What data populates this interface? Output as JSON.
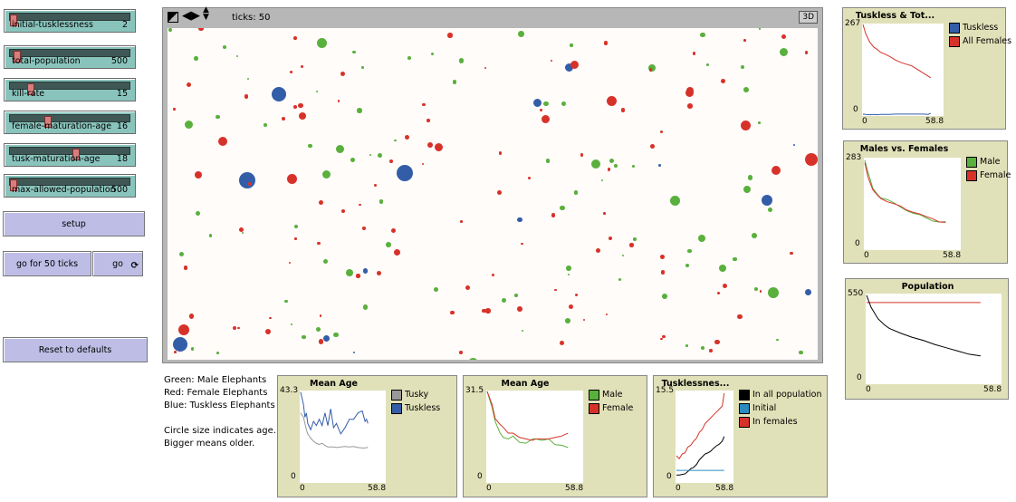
{
  "sliders": [
    {
      "label": "initial-tusklessness",
      "value": "2",
      "fraction": 0.0
    },
    {
      "label": "total-population",
      "value": "500",
      "fraction": 0.03
    },
    {
      "label": "kill-rate",
      "value": "15",
      "fraction": 0.15
    },
    {
      "label": "female-maturation-age",
      "value": "16",
      "fraction": 0.3
    },
    {
      "label": "tusk-maturation-age",
      "value": "18",
      "fraction": 0.54
    },
    {
      "label": "max-allowed-population",
      "value": "500",
      "fraction": 0.0
    }
  ],
  "buttons": {
    "setup": "setup",
    "go_for_50": "go for 50 ticks",
    "go": "go",
    "go_icon": "forever-icon",
    "reset": "Reset to defaults"
  },
  "view": {
    "ticks_label": "ticks: 50",
    "three_d": "3D",
    "colors": {
      "male": "#59b03c",
      "female": "#d73229",
      "tuskless": "#345da8"
    }
  },
  "notes": [
    "Green: Male Elephants",
    "Red: Female Elephants",
    "Blue: Tuskless Elephants",
    "",
    "Circle size indicates age.",
    "Bigger means older."
  ],
  "chart_data": [
    {
      "id": "tuskless-total",
      "type": "line",
      "title": "Tuskless & Tot...",
      "xlim": [
        0,
        58.8
      ],
      "ylim": [
        0,
        267
      ],
      "xticks": [
        "0",
        "58.8"
      ],
      "yticks": [
        "0",
        "267"
      ],
      "x": [
        0,
        2,
        5,
        8,
        10,
        13,
        16,
        20,
        24,
        28,
        32,
        36,
        40,
        44,
        48,
        50
      ],
      "series": [
        {
          "name": "Tuskless",
          "color": "#345da8",
          "values": [
            3,
            2,
            1,
            2,
            1,
            2,
            2,
            2,
            3,
            3,
            3,
            3,
            3,
            3,
            2,
            5
          ]
        },
        {
          "name": "All Females",
          "color": "#d73229",
          "values": [
            267,
            240,
            215,
            200,
            195,
            185,
            180,
            172,
            162,
            155,
            150,
            145,
            135,
            125,
            115,
            110
          ]
        }
      ]
    },
    {
      "id": "males-females",
      "type": "line",
      "title": "Males vs. Females",
      "xlim": [
        0,
        58.8
      ],
      "ylim": [
        0,
        283
      ],
      "xticks": [
        "0",
        "58.8"
      ],
      "yticks": [
        "0",
        "283"
      ],
      "x": [
        0,
        2,
        5,
        8,
        10,
        14,
        18,
        22,
        26,
        30,
        34,
        38,
        42,
        46,
        50
      ],
      "series": [
        {
          "name": "Male",
          "color": "#59b03c",
          "values": [
            278,
            240,
            190,
            170,
            160,
            155,
            145,
            132,
            120,
            112,
            108,
            98,
            88,
            85,
            86
          ]
        },
        {
          "name": "Female",
          "color": "#d73229",
          "values": [
            270,
            225,
            185,
            168,
            158,
            148,
            142,
            135,
            122,
            115,
            110,
            102,
            95,
            85,
            84
          ]
        }
      ]
    },
    {
      "id": "population",
      "type": "line",
      "title": "Population",
      "xlim": [
        0,
        58.8
      ],
      "ylim": [
        0,
        550
      ],
      "xticks": [
        "0",
        "58.8"
      ],
      "yticks": [
        "0",
        "550"
      ],
      "x": [
        0,
        2,
        5,
        8,
        10,
        15,
        20,
        25,
        30,
        35,
        40,
        45,
        50
      ],
      "series": [
        {
          "color": "#d73229",
          "values": [
            500,
            500,
            500,
            500,
            500,
            500,
            500,
            500,
            500,
            500,
            500,
            500,
            500
          ]
        },
        {
          "color": "#000000",
          "values": [
            545,
            470,
            400,
            360,
            340,
            310,
            285,
            265,
            240,
            220,
            200,
            180,
            170
          ]
        }
      ]
    },
    {
      "id": "mean-age-tusk",
      "type": "line",
      "title": "Mean Age",
      "xlim": [
        0,
        58.8
      ],
      "ylim": [
        0,
        43.3
      ],
      "xticks": [
        "0",
        "58.8"
      ],
      "yticks": [
        "0",
        "43.3"
      ],
      "x": [
        0,
        2,
        3,
        4,
        5,
        7,
        9,
        11,
        13,
        15,
        17,
        19,
        21,
        23,
        25,
        28,
        31,
        34,
        37,
        40,
        43,
        45,
        46,
        47
      ],
      "series": [
        {
          "name": "Tusky",
          "color": "#999999",
          "values": [
            33,
            31,
            28,
            25,
            23,
            21,
            19.5,
            18.5,
            18,
            18.5,
            17.5,
            16.8,
            16.8,
            16.8,
            16.5,
            16.8,
            17,
            16.8,
            17,
            16.5,
            16.3,
            16.3,
            16.5,
            16.5
          ]
        },
        {
          "name": "Tuskless",
          "color": "#345da8",
          "values": [
            43,
            37,
            31,
            33,
            28,
            25,
            29,
            27,
            30,
            27,
            33,
            27,
            35,
            26,
            28,
            23,
            26,
            30,
            30,
            33,
            34,
            29,
            30,
            28
          ]
        }
      ]
    },
    {
      "id": "mean-age-sex",
      "type": "line",
      "title": "Mean Age",
      "xlim": [
        0,
        58.8
      ],
      "ylim": [
        0,
        31.5
      ],
      "xticks": [
        "0",
        "58.8"
      ],
      "yticks": [
        "0",
        "31.5"
      ],
      "x": [
        0,
        3,
        5,
        8,
        10,
        13,
        16,
        20,
        24,
        28,
        30,
        34,
        38,
        42,
        46,
        50
      ],
      "series": [
        {
          "name": "Male",
          "color": "#59b03c",
          "values": [
            31.5,
            26,
            21,
            17,
            15.5,
            15,
            16,
            13.8,
            13.5,
            15,
            15,
            14.5,
            15,
            13,
            12.8,
            12
          ]
        },
        {
          "name": "Female",
          "color": "#d73229",
          "values": [
            31.5,
            27,
            22,
            20,
            19,
            17,
            17,
            15.5,
            15,
            14.5,
            15,
            15,
            15,
            15.5,
            16,
            17
          ]
        }
      ]
    },
    {
      "id": "tusklessness",
      "type": "line",
      "title": "Tusklessnes...",
      "xlim": [
        0,
        58.8
      ],
      "ylim": [
        0,
        15.5
      ],
      "xticks": [
        "0",
        "58.8"
      ],
      "yticks": [
        "0",
        "15.5"
      ],
      "x": [
        0,
        3,
        6,
        9,
        12,
        15,
        18,
        21,
        24,
        27,
        30,
        33,
        36,
        39,
        42,
        45,
        48,
        50
      ],
      "series": [
        {
          "name": "In all population",
          "color": "#000000",
          "values": [
            1.2,
            1.2,
            1.3,
            1.4,
            1.8,
            2.3,
            2.5,
            3,
            3.8,
            4.3,
            4.8,
            5,
            5.3,
            5.8,
            6.2,
            6.5,
            7,
            7.8
          ]
        },
        {
          "name": "Initial",
          "color": "#2a8bbf",
          "values": [
            2,
            2,
            2,
            2,
            2,
            2,
            2,
            2,
            2,
            2,
            2,
            2,
            2,
            2,
            2,
            2,
            2,
            2
          ]
        },
        {
          "name": "In females",
          "color": "#d73229",
          "values": [
            4.5,
            4,
            4.8,
            5,
            6,
            6.3,
            7,
            7.5,
            8.5,
            9,
            10,
            10.5,
            11,
            11.5,
            12,
            12.5,
            13,
            15.2
          ]
        }
      ]
    }
  ]
}
